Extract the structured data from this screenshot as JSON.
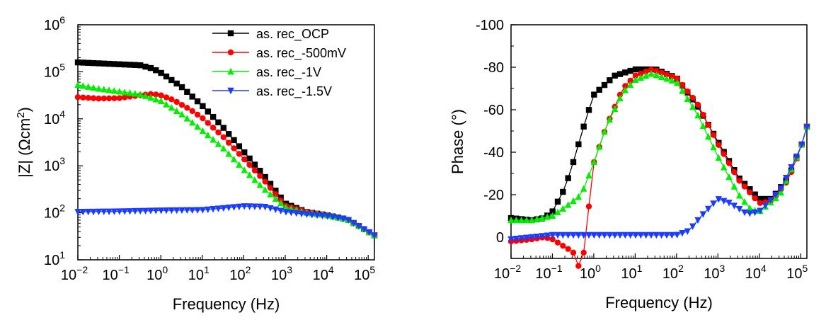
{
  "chart_data": [
    {
      "type": "line",
      "title": "",
      "xlabel": "Frequency (Hz)",
      "ylabel": "|Z| (Ωcm²)",
      "xscale": "log",
      "yscale": "log",
      "xlim_exp": [
        -2,
        5.15
      ],
      "ylim_exp": [
        1,
        6
      ],
      "x_tick_exponents": [
        -2,
        -1,
        0,
        1,
        2,
        3,
        4,
        5
      ],
      "y_tick_exponents": [
        1,
        2,
        3,
        4,
        5,
        6
      ],
      "tick_base": "10",
      "legend_position": "top-right",
      "series": [
        {
          "name": "as. rec_OCP",
          "color": "#000000",
          "marker": "square",
          "points": [
            [
              -2,
              5.2
            ],
            [
              -1,
              5.16
            ],
            [
              -0.5,
              5.14
            ],
            [
              -0.2,
              5.07
            ],
            [
              0,
              4.98
            ],
            [
              0.5,
              4.68
            ],
            [
              1,
              4.28
            ],
            [
              1.5,
              3.82
            ],
            [
              2,
              3.3
            ],
            [
              2.5,
              2.78
            ],
            [
              3,
              2.2
            ],
            [
              3.5,
              2.02
            ],
            [
              4,
              1.95
            ],
            [
              4.5,
              1.86
            ],
            [
              5,
              1.6
            ],
            [
              5.15,
              1.52
            ]
          ]
        },
        {
          "name": "as. rec_-500mV",
          "color": "#ff0000",
          "marker": "circle",
          "points": [
            [
              -2,
              4.46
            ],
            [
              -1.5,
              4.43
            ],
            [
              -1,
              4.44
            ],
            [
              -0.5,
              4.5
            ],
            [
              -0.2,
              4.53
            ],
            [
              0,
              4.5
            ],
            [
              0.3,
              4.4
            ],
            [
              0.7,
              4.2
            ],
            [
              1,
              4.02
            ],
            [
              1.5,
              3.62
            ],
            [
              2,
              3.15
            ],
            [
              2.5,
              2.68
            ],
            [
              3,
              2.15
            ],
            [
              3.5,
              2.02
            ],
            [
              4,
              1.95
            ],
            [
              4.5,
              1.86
            ],
            [
              5,
              1.6
            ],
            [
              5.15,
              1.52
            ]
          ]
        },
        {
          "name": "as. rec_-1V",
          "color": "#00ee00",
          "marker": "triangle-up",
          "points": [
            [
              -2,
              4.72
            ],
            [
              -1.5,
              4.64
            ],
            [
              -1,
              4.58
            ],
            [
              -0.5,
              4.52
            ],
            [
              0,
              4.38
            ],
            [
              0.5,
              4.1
            ],
            [
              1,
              3.75
            ],
            [
              1.5,
              3.38
            ],
            [
              2,
              2.92
            ],
            [
              2.5,
              2.5
            ],
            [
              3,
              2.12
            ],
            [
              3.5,
              2.0
            ],
            [
              4,
              1.95
            ],
            [
              4.5,
              1.86
            ],
            [
              5,
              1.6
            ],
            [
              5.15,
              1.52
            ]
          ]
        },
        {
          "name": "as. rec_-1.5V",
          "color": "#1a3cff",
          "marker": "triangle-down",
          "points": [
            [
              -2,
              2.02
            ],
            [
              -1,
              2.03
            ],
            [
              0,
              2.05
            ],
            [
              1,
              2.06
            ],
            [
              1.5,
              2.1
            ],
            [
              2,
              2.14
            ],
            [
              2.5,
              2.13
            ],
            [
              3,
              2.02
            ],
            [
              3.5,
              1.97
            ],
            [
              4,
              1.93
            ],
            [
              4.5,
              1.86
            ],
            [
              5,
              1.6
            ],
            [
              5.15,
              1.52
            ]
          ]
        }
      ]
    },
    {
      "type": "line",
      "title": "",
      "xlabel": "Frequency (Hz)",
      "ylabel": "Phase (°)",
      "xscale": "log",
      "xlim_exp": [
        -2,
        5.15
      ],
      "ylim": [
        10,
        -100
      ],
      "y_ticks": [
        -100,
        -80,
        -60,
        -40,
        -20,
        0
      ],
      "x_tick_exponents": [
        -2,
        -1,
        0,
        1,
        2,
        3,
        4,
        5
      ],
      "tick_base": "10",
      "series": [
        {
          "name": "as. rec_OCP",
          "color": "#000000",
          "marker": "square",
          "points": [
            [
              -2,
              -9
            ],
            [
              -1.5,
              -8
            ],
            [
              -1.2,
              -9
            ],
            [
              -1,
              -12
            ],
            [
              -0.7,
              -23
            ],
            [
              -0.5,
              -35
            ],
            [
              -0.2,
              -55
            ],
            [
              0,
              -67
            ],
            [
              0.5,
              -76
            ],
            [
              1,
              -79
            ],
            [
              1.5,
              -79
            ],
            [
              2,
              -75
            ],
            [
              2.5,
              -62
            ],
            [
              3,
              -45
            ],
            [
              3.5,
              -28
            ],
            [
              4,
              -18
            ],
            [
              4.3,
              -18
            ],
            [
              4.7,
              -28
            ],
            [
              5,
              -42
            ],
            [
              5.15,
              -52
            ]
          ]
        },
        {
          "name": "as. rec_-500mV",
          "color": "#ff0000",
          "marker": "circle",
          "points": [
            [
              -2,
              2
            ],
            [
              -1.5,
              1
            ],
            [
              -1.2,
              0
            ],
            [
              -1,
              1
            ],
            [
              -0.5,
              7
            ],
            [
              -0.3,
              17
            ],
            [
              0,
              -35
            ],
            [
              0.3,
              -52
            ],
            [
              0.7,
              -70
            ],
            [
              1,
              -76
            ],
            [
              1.4,
              -79
            ],
            [
              2,
              -75
            ],
            [
              2.5,
              -63
            ],
            [
              3,
              -44
            ],
            [
              3.5,
              -27
            ],
            [
              4,
              -16
            ],
            [
              4.3,
              -17
            ],
            [
              4.7,
              -27
            ],
            [
              5,
              -42
            ],
            [
              5.15,
              -52
            ]
          ]
        },
        {
          "name": "as. rec_-1V",
          "color": "#00ee00",
          "marker": "triangle-up",
          "points": [
            [
              -2,
              -8
            ],
            [
              -1.5,
              -8
            ],
            [
              -1,
              -10
            ],
            [
              -0.7,
              -14
            ],
            [
              -0.3,
              -20
            ],
            [
              0,
              -35
            ],
            [
              0.3,
              -52
            ],
            [
              0.7,
              -68
            ],
            [
              1,
              -74
            ],
            [
              1.4,
              -77
            ],
            [
              2,
              -73
            ],
            [
              2.5,
              -58
            ],
            [
              3,
              -38
            ],
            [
              3.5,
              -20
            ],
            [
              3.8,
              -13
            ],
            [
              4,
              -12
            ],
            [
              4.5,
              -20
            ],
            [
              5,
              -42
            ],
            [
              5.15,
              -52
            ]
          ]
        },
        {
          "name": "as. rec_-1.5V",
          "color": "#1a3cff",
          "marker": "triangle-down",
          "points": [
            [
              -2,
              1
            ],
            [
              -1.5,
              0
            ],
            [
              -1,
              -1
            ],
            [
              0,
              -1
            ],
            [
              1,
              -1
            ],
            [
              1.5,
              -1
            ],
            [
              2,
              -1
            ],
            [
              2.3,
              -3
            ],
            [
              2.6,
              -10
            ],
            [
              3,
              -18
            ],
            [
              3.3,
              -16
            ],
            [
              3.7,
              -11
            ],
            [
              4,
              -12
            ],
            [
              4.5,
              -22
            ],
            [
              5,
              -42
            ],
            [
              5.15,
              -52
            ]
          ]
        }
      ]
    }
  ]
}
